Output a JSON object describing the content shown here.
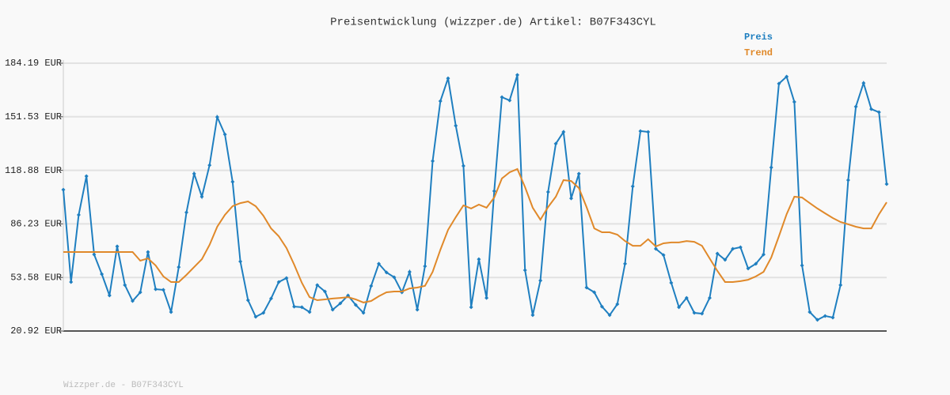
{
  "chart_data": {
    "type": "line",
    "title": "Preisentwicklung (wizzper.de) Artikel: B07F343CYL",
    "footer": "Wizzper.de - B07F343CYL",
    "ylim": [
      20.92,
      184.19
    ],
    "yticks": [
      {
        "value": 20.92,
        "label": "20.92 EUR"
      },
      {
        "value": 53.58,
        "label": "53.58 EUR"
      },
      {
        "value": 86.23,
        "label": "86.23 EUR"
      },
      {
        "value": 118.88,
        "label": "118.88 EUR"
      },
      {
        "value": 151.53,
        "label": "151.53 EUR"
      },
      {
        "value": 184.19,
        "label": "184.19 EUR"
      }
    ],
    "grid": true,
    "legend": "top-right",
    "series": [
      {
        "name": "Preis",
        "color": "#1f7fc0",
        "markers": true,
        "values": [
          107.1,
          50.8,
          91.7,
          115.3,
          67.6,
          55.6,
          42.6,
          72.5,
          48.9,
          39.2,
          44.5,
          69.1,
          46.4,
          46.0,
          32.5,
          59.9,
          93.2,
          116.8,
          102.8,
          122.0,
          151.4,
          140.8,
          111.9,
          63.3,
          39.7,
          29.6,
          32.0,
          40.7,
          50.8,
          53.2,
          35.8,
          35.4,
          32.5,
          48.9,
          45.0,
          33.9,
          37.8,
          42.6,
          36.8,
          32.0,
          48.4,
          61.9,
          56.6,
          53.7,
          44.5,
          57.0,
          33.9,
          60.4,
          124.5,
          161.1,
          175.0,
          146.1,
          121.6,
          35.4,
          64.7,
          41.1,
          106.2,
          163.5,
          161.5,
          177.0,
          58.0,
          30.6,
          51.7,
          105.7,
          135.1,
          142.3,
          101.8,
          116.8,
          47.4,
          44.5,
          35.8,
          30.6,
          37.3,
          61.9,
          109.1,
          142.8,
          142.3,
          71.0,
          67.2,
          50.3,
          35.4,
          41.1,
          32.0,
          31.5,
          41.1,
          68.1,
          64.3,
          71.0,
          72.0,
          59.0,
          61.9,
          67.6,
          120.6,
          171.7,
          176.0,
          160.6,
          60.9,
          32.5,
          27.7,
          30.1,
          29.1,
          48.9,
          112.9,
          157.7,
          172.1,
          156.2,
          154.3,
          110.5
        ]
      },
      {
        "name": "Trend",
        "color": "#e0892a",
        "markers": false,
        "values": [
          69.1,
          69.1,
          69.1,
          69.1,
          69.1,
          69.1,
          69.1,
          69.1,
          69.1,
          69.1,
          63.8,
          65.2,
          60.9,
          54.2,
          50.8,
          50.8,
          55.1,
          59.9,
          64.7,
          73.4,
          84.5,
          91.7,
          97.0,
          98.9,
          99.9,
          97.0,
          91.2,
          83.5,
          78.7,
          71.5,
          61.4,
          50.3,
          41.6,
          39.7,
          40.2,
          40.7,
          41.1,
          41.6,
          40.2,
          38.3,
          39.2,
          42.1,
          44.5,
          45.0,
          45.0,
          46.9,
          47.4,
          48.4,
          57.0,
          70.5,
          82.6,
          90.3,
          97.5,
          95.6,
          98.0,
          96.1,
          102.3,
          113.9,
          117.7,
          119.7,
          108.6,
          96.1,
          88.8,
          96.5,
          102.8,
          112.9,
          112.4,
          108.1,
          96.5,
          83.5,
          81.1,
          81.1,
          79.7,
          75.8,
          72.9,
          72.9,
          76.9,
          72.5,
          74.4,
          74.9,
          74.9,
          75.8,
          75.3,
          72.9,
          65.2,
          57.5,
          50.8,
          50.8,
          51.3,
          52.2,
          54.2,
          57.0,
          65.7,
          78.7,
          92.1,
          102.8,
          102.3,
          98.9,
          95.6,
          92.7,
          89.8,
          87.4,
          86.0,
          84.5,
          83.5,
          83.5,
          92.1,
          99.4
        ]
      }
    ]
  }
}
